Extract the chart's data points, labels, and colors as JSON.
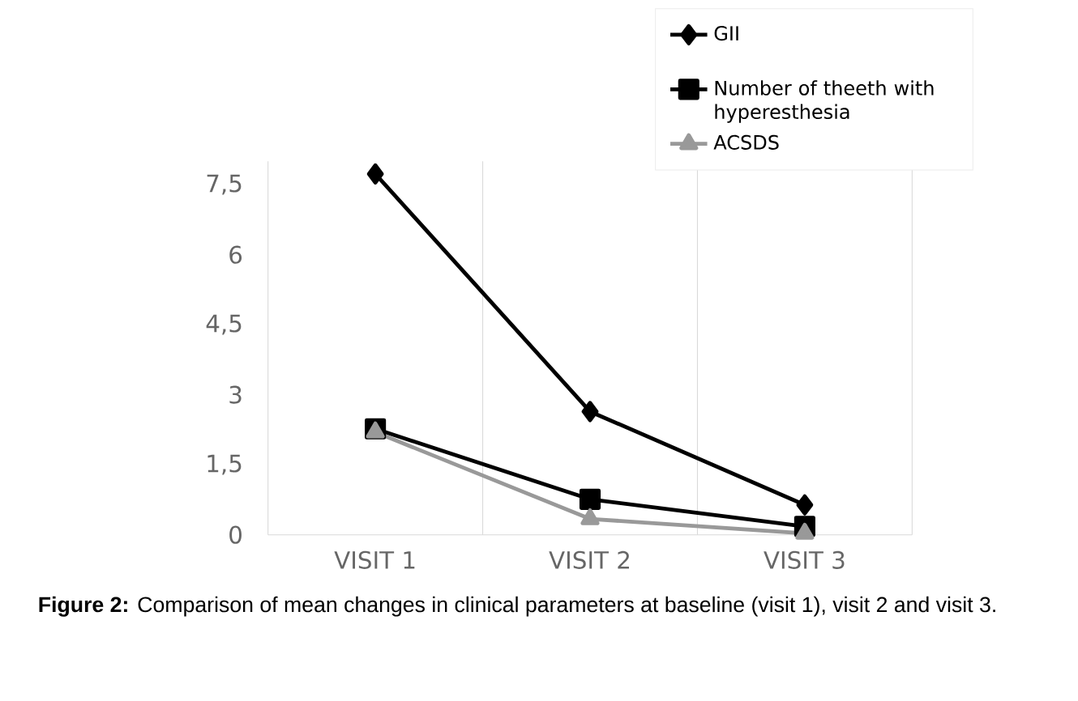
{
  "chart_data": {
    "type": "line",
    "categories": [
      "VISIT 1",
      "VISIT 2",
      "VISIT 3"
    ],
    "series": [
      {
        "name": "GII",
        "color": "#000000",
        "marker": "diamond",
        "values": [
          7.73,
          2.64,
          0.64
        ]
      },
      {
        "name": "Number of theeth with hyperesthesia",
        "color": "#000000",
        "marker": "square",
        "values": [
          2.27,
          0.76,
          0.18
        ]
      },
      {
        "name": "ACSDS",
        "color": "#999999",
        "marker": "triangle",
        "values": [
          2.2,
          0.34,
          0.03
        ]
      }
    ],
    "ylim": [
      0,
      8
    ],
    "yticks": [
      0,
      {
        "value": 1.5,
        "label": "1,5"
      },
      3,
      {
        "value": 4.5,
        "label": "4,5"
      },
      6,
      {
        "value": 7.5,
        "label": "7,5"
      }
    ],
    "grid": "x",
    "legend": "top right",
    "line_style": "solid",
    "annotations": [
      "**Figure 2:** Comparison of mean changes in clinical parameters at baseline (visit 1), visit 2 and visit 3."
    ]
  }
}
